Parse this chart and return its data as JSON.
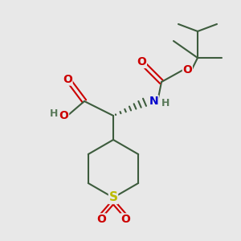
{
  "bg_color": "#e8e8e8",
  "bond_color": "#3d5c3d",
  "o_color": "#cc0000",
  "n_color": "#0000cc",
  "s_color": "#bbbb00",
  "h_color": "#5a7a5a",
  "line_width": 1.5,
  "figsize": [
    3.0,
    3.0
  ],
  "dpi": 100,
  "xlim": [
    0,
    10
  ],
  "ylim": [
    0,
    10
  ],
  "font_size": 9
}
